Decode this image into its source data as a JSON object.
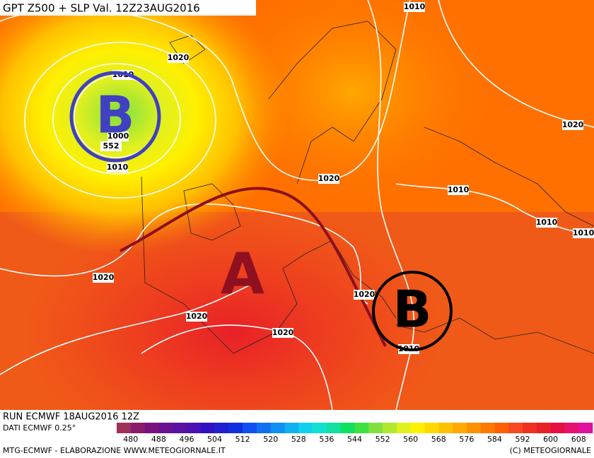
{
  "header": {
    "title": "GPT Z500 + SLP Val. 12Z23AUG2016"
  },
  "map": {
    "isobar_labels": [
      1010,
      1020,
      1010,
      1000,
      552,
      1010,
      1020,
      1010,
      1020,
      1010,
      1010,
      1020,
      1020,
      1020,
      1020,
      1010
    ],
    "centers": [
      "B",
      "A",
      "B"
    ]
  },
  "footer": {
    "run": "RUN ECMWF 18AUG2016 12Z",
    "source": "DATI ECMWF 0.25°",
    "credit": "MTG-ECMWF - ELABORAZIONE WWW.METEOGIORNALE.IT",
    "copyright": "(C) METEOGIORNALE",
    "scale_labels": [
      480,
      488,
      496,
      504,
      512,
      520,
      528,
      536,
      544,
      552,
      560,
      568,
      576,
      584,
      592,
      600,
      608
    ],
    "scale_colors": [
      "#a0305a",
      "#8a1a6a",
      "#7a1080",
      "#6a1090",
      "#5a10a0",
      "#4a10b0",
      "#3010c0",
      "#2020d0",
      "#1030e0",
      "#1050f0",
      "#1070f0",
      "#1090f0",
      "#10b0f0",
      "#10d0f0",
      "#10e0d0",
      "#10e0a0",
      "#10e060",
      "#40e040",
      "#80e040",
      "#b0e830",
      "#e0f020",
      "#fff000",
      "#ffd800",
      "#ffc000",
      "#ffa800",
      "#ff9000",
      "#ff7800",
      "#ff6000",
      "#f84820",
      "#f03020",
      "#e82028",
      "#e81040",
      "#e81070",
      "#e010a0"
    ]
  }
}
